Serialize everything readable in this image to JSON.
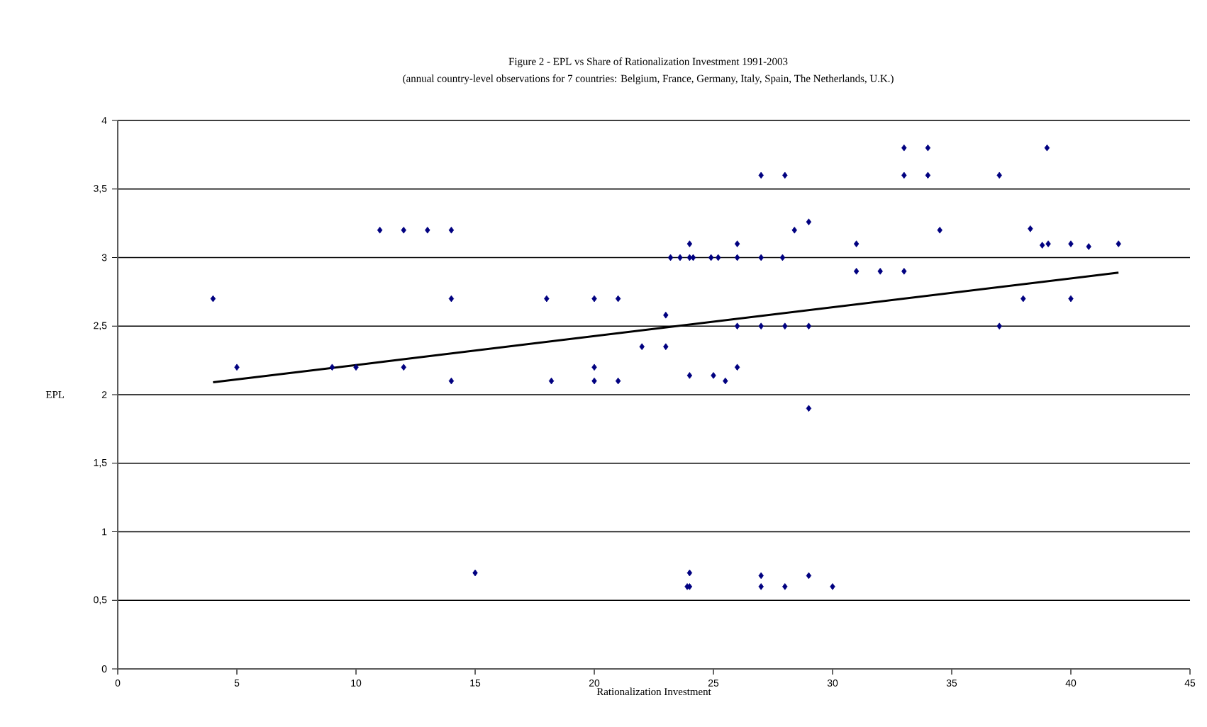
{
  "chart_data": {
    "type": "scatter",
    "title": "Figure 2 - EPL vs Share of Rationalization Investment 1991-2003",
    "subtitle": "(annual country-level observations for 7 countries: Belgium, France, Germany, Italy, Spain, The Netherlands, U.K.)",
    "xlabel": "Rationalization Investment",
    "ylabel": "EPL",
    "xlim": [
      0,
      45
    ],
    "xticks": [
      0,
      5,
      10,
      15,
      20,
      25,
      30,
      35,
      40,
      45
    ],
    "ylim": [
      0,
      4
    ],
    "yticks": [
      0,
      {
        "value": 0.5,
        "label": "0,5"
      },
      1,
      {
        "value": 1.5,
        "label": "1,5"
      },
      2,
      {
        "value": 2.5,
        "label": "2,5"
      },
      3,
      {
        "value": 3.5,
        "label": "3,5"
      },
      4
    ],
    "grid": "y",
    "series": [
      {
        "type": "scatter",
        "color": "#000080",
        "marker": "diamond",
        "x": [
          4,
          5,
          9,
          10,
          11,
          12,
          13,
          14,
          14,
          12,
          14,
          15,
          18,
          18.2,
          20,
          20,
          20,
          21,
          21,
          22,
          23,
          23,
          23.2,
          23.6,
          24,
          24,
          24.15,
          24,
          24,
          23.9,
          24,
          24.9,
          25.2,
          25,
          25.5,
          26,
          26,
          26,
          26,
          27,
          27,
          27,
          27,
          27,
          28,
          27.9,
          28,
          28,
          28.4,
          29,
          29,
          29,
          29,
          30,
          31,
          31,
          32,
          33,
          33,
          34,
          34,
          33,
          34.5,
          37,
          37,
          38,
          38.3,
          38.8,
          39.05,
          39,
          40,
          40.75,
          42,
          40
        ],
        "values": [
          2.7,
          2.2,
          2.2,
          2.2,
          3.2,
          3.2,
          3.2,
          3.2,
          2.7,
          2.2,
          2.1,
          0.7,
          2.7,
          2.1,
          2.7,
          2.2,
          2.1,
          2.7,
          2.1,
          2.35,
          2.58,
          2.35,
          3.0,
          3.0,
          3.1,
          3.0,
          3.0,
          2.14,
          0.7,
          0.6,
          0.6,
          3.0,
          3.0,
          2.14,
          2.1,
          3.1,
          3.0,
          2.5,
          2.2,
          3.6,
          3.0,
          2.5,
          0.68,
          0.6,
          3.6,
          3.0,
          2.5,
          0.6,
          3.2,
          3.26,
          2.5,
          1.9,
          0.68,
          0.6,
          3.1,
          2.9,
          2.9,
          2.9,
          3.8,
          3.8,
          3.6,
          3.6,
          3.2,
          3.6,
          2.5,
          2.7,
          3.21,
          3.09,
          3.1,
          3.8,
          3.1,
          3.08,
          3.1,
          2.7
        ]
      },
      {
        "type": "line",
        "color": "#000000",
        "marker": "none",
        "line_style": "solid",
        "x": [
          4,
          42
        ],
        "values": [
          2.09,
          2.89
        ]
      }
    ]
  }
}
